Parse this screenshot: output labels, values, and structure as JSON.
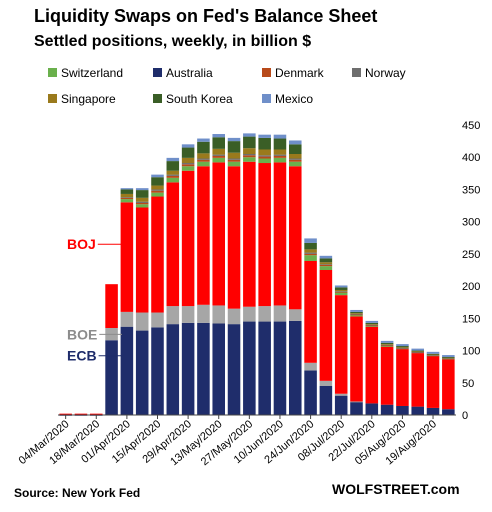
{
  "title": "Liquidity Swaps on Fed's Balance Sheet",
  "subtitle": "Settled positions, weekly, in billion $",
  "source": "Source: New York Fed",
  "brand": "WOLFSTREET.com",
  "chart_data": {
    "type": "bar",
    "stacked": true,
    "categories": [
      "04/Mar/2020",
      "11/Mar/2020",
      "18/Mar/2020",
      "25/Mar/2020",
      "01/Apr/2020",
      "08/Apr/2020",
      "15/Apr/2020",
      "22/Apr/2020",
      "29/Apr/2020",
      "06/May/2020",
      "13/May/2020",
      "20/May/2020",
      "27/May/2020",
      "03/Jun/2020",
      "10/Jun/2020",
      "17/Jun/2020",
      "24/Jun/2020",
      "01/Jul/2020",
      "08/Jul/2020",
      "15/Jul/2020",
      "22/Jul/2020",
      "29/Jul/2020",
      "05/Aug/2020",
      "12/Aug/2020",
      "19/Aug/2020",
      "26/Aug/2020"
    ],
    "x_tick_labels": [
      "04/Mar/2020",
      "18/Mar/2020",
      "01/Apr/2020",
      "15/Apr/2020",
      "29/Apr/2020",
      "13/May/2020",
      "27/May/2020",
      "10/Jun/2020",
      "24/Jun/2020",
      "08/Jul/2020",
      "22/Jul/2020",
      "05/Aug/2020",
      "19/Aug/2020"
    ],
    "ylim": [
      0,
      450
    ],
    "yticks": [
      0,
      50,
      100,
      150,
      200,
      250,
      300,
      350,
      400,
      450
    ],
    "y_axis_side": "right",
    "legend_position": "top",
    "series": [
      {
        "name": "ECB",
        "color": "#1f2d6b",
        "in_legend": false,
        "values": [
          0.1,
          0.1,
          0.1,
          116,
          137,
          131,
          136,
          141,
          143,
          143,
          142,
          141,
          145,
          145,
          145,
          146,
          69,
          45,
          30,
          20,
          18,
          16,
          14,
          13,
          11,
          9
        ]
      },
      {
        "name": "BOE",
        "color": "#a6a6a6",
        "in_legend": false,
        "values": [
          0,
          0,
          0,
          19,
          23,
          28,
          23,
          28,
          26,
          28,
          28,
          24,
          23,
          24,
          25,
          18,
          12,
          8,
          3,
          1,
          0,
          0,
          0,
          0,
          0,
          0
        ]
      },
      {
        "name": "BOJ",
        "color": "#ff0000",
        "in_legend": false,
        "values": [
          2,
          2,
          2,
          68,
          170,
          163,
          180,
          192,
          210,
          215,
          222,
          221,
          225,
          222,
          222,
          222,
          158,
          172,
          153,
          132,
          119,
          90,
          88,
          83,
          80,
          77
        ]
      },
      {
        "name": "Switzerland",
        "color": "#6ab04c",
        "values": [
          0,
          0,
          0,
          0,
          5,
          5,
          6,
          7,
          7,
          7,
          7,
          7,
          7,
          7,
          7,
          7,
          9,
          6,
          4,
          2,
          1,
          1,
          0,
          0,
          0,
          0
        ]
      },
      {
        "name": "Australia",
        "color": "#1f2d6b",
        "values": [
          0,
          0,
          0,
          0,
          0,
          0,
          0,
          0,
          0,
          0,
          0,
          0,
          0,
          0,
          0,
          0,
          0,
          0,
          0,
          0,
          0,
          0,
          0,
          0,
          0,
          0
        ]
      },
      {
        "name": "Denmark",
        "color": "#b84a1a",
        "values": [
          0,
          0,
          0,
          0,
          2,
          2,
          3,
          3,
          3,
          3,
          3,
          3,
          3,
          3,
          3,
          3,
          2,
          2,
          1,
          1,
          1,
          1,
          1,
          1,
          1,
          1
        ]
      },
      {
        "name": "Norway",
        "color": "#6e6e6e",
        "values": [
          0,
          0,
          0,
          0,
          1,
          2,
          2,
          2,
          2,
          2,
          2,
          2,
          2,
          2,
          2,
          2,
          2,
          1,
          1,
          1,
          1,
          1,
          1,
          1,
          1,
          1
        ]
      },
      {
        "name": "Singapore",
        "color": "#9a7a1c",
        "values": [
          0,
          0,
          0,
          0,
          5,
          6,
          6,
          6,
          8,
          8,
          9,
          9,
          9,
          9,
          8,
          7,
          5,
          3,
          2,
          1,
          1,
          1,
          1,
          1,
          1,
          1
        ]
      },
      {
        "name": "South Korea",
        "color": "#3a5e26",
        "values": [
          0,
          0,
          0,
          0,
          7,
          12,
          13,
          15,
          16,
          18,
          18,
          18,
          18,
          18,
          17,
          15,
          10,
          6,
          4,
          2,
          2,
          2,
          2,
          1,
          1,
          1
        ]
      },
      {
        "name": "Mexico",
        "color": "#6f8fc9",
        "values": [
          0,
          0,
          0,
          0,
          2,
          3,
          4,
          5,
          5,
          5,
          5,
          5,
          5,
          5,
          6,
          6,
          7,
          4,
          3,
          3,
          3,
          3,
          3,
          3,
          3,
          3
        ]
      }
    ],
    "annotations": [
      {
        "text": "BOJ",
        "value": 265,
        "color": "#ff0000"
      },
      {
        "text": "BOE",
        "value": 125,
        "color": "#8c8c8c"
      },
      {
        "text": "ECB",
        "value": 92,
        "color": "#1f2d6b"
      }
    ]
  }
}
